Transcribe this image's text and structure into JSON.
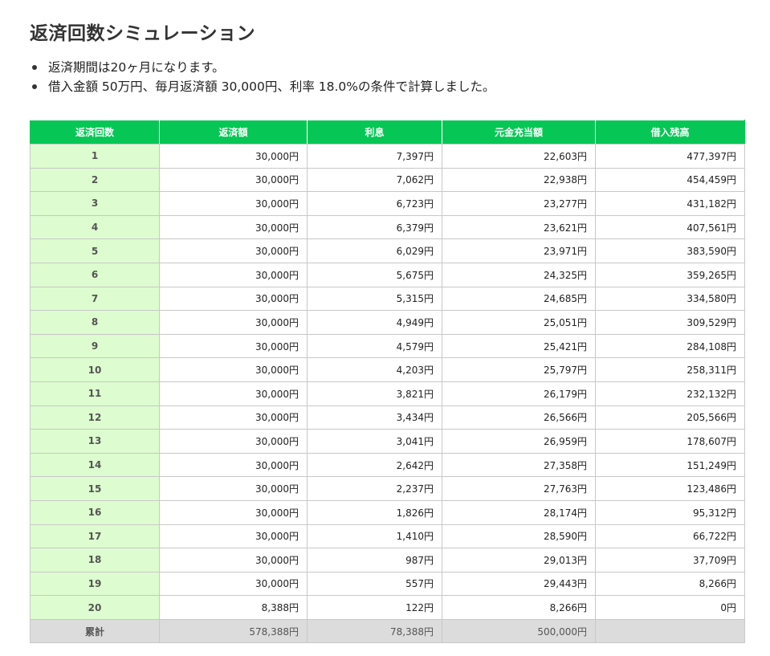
{
  "page": {
    "title": "返済回数シミュレーション",
    "notes": [
      "返済期間は20ヶ月になります。",
      "借入金額 50万円、毎月返済額 30,000円、利率 18.0%の条件で計算しました。"
    ]
  },
  "table": {
    "headers": [
      "返済回数",
      "返済額",
      "利息",
      "元金充当額",
      "借入残高"
    ],
    "rows": [
      [
        "1",
        "30,000円",
        "7,397円",
        "22,603円",
        "477,397円"
      ],
      [
        "2",
        "30,000円",
        "7,062円",
        "22,938円",
        "454,459円"
      ],
      [
        "3",
        "30,000円",
        "6,723円",
        "23,277円",
        "431,182円"
      ],
      [
        "4",
        "30,000円",
        "6,379円",
        "23,621円",
        "407,561円"
      ],
      [
        "5",
        "30,000円",
        "6,029円",
        "23,971円",
        "383,590円"
      ],
      [
        "6",
        "30,000円",
        "5,675円",
        "24,325円",
        "359,265円"
      ],
      [
        "7",
        "30,000円",
        "5,315円",
        "24,685円",
        "334,580円"
      ],
      [
        "8",
        "30,000円",
        "4,949円",
        "25,051円",
        "309,529円"
      ],
      [
        "9",
        "30,000円",
        "4,579円",
        "25,421円",
        "284,108円"
      ],
      [
        "10",
        "30,000円",
        "4,203円",
        "25,797円",
        "258,311円"
      ],
      [
        "11",
        "30,000円",
        "3,821円",
        "26,179円",
        "232,132円"
      ],
      [
        "12",
        "30,000円",
        "3,434円",
        "26,566円",
        "205,566円"
      ],
      [
        "13",
        "30,000円",
        "3,041円",
        "26,959円",
        "178,607円"
      ],
      [
        "14",
        "30,000円",
        "2,642円",
        "27,358円",
        "151,249円"
      ],
      [
        "15",
        "30,000円",
        "2,237円",
        "27,763円",
        "123,486円"
      ],
      [
        "16",
        "30,000円",
        "1,826円",
        "28,174円",
        "95,312円"
      ],
      [
        "17",
        "30,000円",
        "1,410円",
        "28,590円",
        "66,722円"
      ],
      [
        "18",
        "30,000円",
        "987円",
        "29,013円",
        "37,709円"
      ],
      [
        "19",
        "30,000円",
        "557円",
        "29,443円",
        "8,266円"
      ],
      [
        "20",
        "8,388円",
        "122円",
        "8,266円",
        "0円"
      ]
    ],
    "total": [
      "累計",
      "578,388円",
      "78,388円",
      "500,000円",
      ""
    ]
  },
  "colors": {
    "header_bg": "#06c755",
    "first_col_bg": "#ddfccf",
    "total_bg": "#dcdcdc"
  }
}
